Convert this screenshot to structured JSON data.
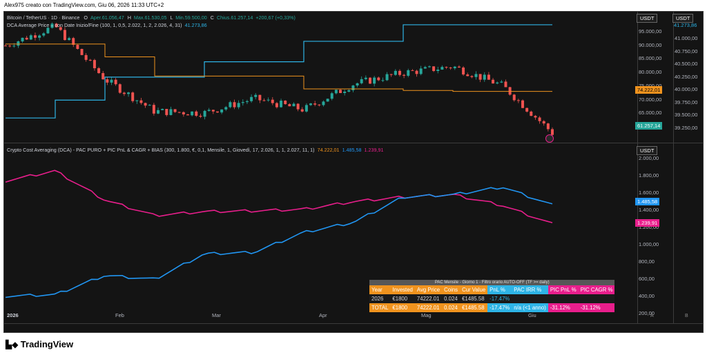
{
  "caption": "Alex975 creato con TradingView.com, Giu 06, 2026 11:33 UTC+2",
  "brand": "TradingView",
  "colors": {
    "bg": "#141414",
    "up": "#26a69a",
    "down": "#ef5350",
    "orange": "#f0931e",
    "cyan": "#2eb4e6",
    "blue": "#2196f3",
    "pink": "#e91e8c"
  },
  "top_legend": {
    "line1": {
      "symbol": "Bitcoin / TetherUS · 1D · Binance",
      "o": "O",
      "o_val": "Aper.61.056,47",
      "h": "H",
      "h_val": "Max.61.530,05",
      "l": "L",
      "l_val": "Min.59.500,00",
      "c": "C",
      "c_val": "Chius.61.257,14",
      "chg": "+200,67 (+0,33%)"
    },
    "line2": {
      "label": "DCA Average Price – con Date Inizio/Fine (100, 1, 0,5, 2.022, 1, 2, 2.026, 4, 31)",
      "value": "41.273,86"
    }
  },
  "bottom_legend": {
    "label": "Crypto Cost Averaging (DCA) - PAC PURO + PIC PnL & CAGR + BIAS (300, 1.800, €, 0,1, Mensile, 1, Giovedì, 17, 2.026, 1, 1, 2.027, 11, 1)",
    "v1": "74.222,01",
    "v2": "1.485,58",
    "v3": "1.239,91"
  },
  "unit": "USDT",
  "left_axis_ticks": [
    "95.000,00",
    "90.000,00",
    "85.000,00",
    "80.000,00",
    "75.000,00",
    "70.000,00",
    "65.000,00",
    "60.000,00"
  ],
  "right_axis_ticks": [
    "41.000,00",
    "40.750,00",
    "40.500,00",
    "40.250,00",
    "40.000,00",
    "39.750,00",
    "39.500,00",
    "39.250,00"
  ],
  "right_axis_top": "41.273,86",
  "price_badges": {
    "avg": "74.222,01",
    "last": "61.257,14"
  },
  "bottom_axis_ticks": [
    "2.000,00",
    "1.800,00",
    "1.600,00",
    "1.400,00",
    "1.200,00",
    "1.000,00",
    "800,00",
    "600,00",
    "400,00",
    "200,00"
  ],
  "bottom_badges": {
    "blue": "1.485,58",
    "pink": "1.239,91"
  },
  "x_ticks": [
    "2026",
    "Feb",
    "Mar",
    "Apr",
    "Mag",
    "Giu"
  ],
  "pane_letters": [
    "A",
    "B"
  ],
  "table": {
    "title": "PAC Mensile - Giorno 1 - Filtro orario AUTO-OFF (TF >= daily)",
    "headers": [
      "Year",
      "Invested",
      "Avg Price",
      "Coins",
      "Cur Value",
      "PnL %",
      "PAC IRR %",
      "PIC PnL %",
      "PIC CAGR %"
    ],
    "row1": [
      "2026",
      "€1800",
      "74222.01",
      "0.024",
      "€1485.58",
      "-17.47%",
      "",
      "",
      ""
    ],
    "row2": [
      "TOTAL",
      "€1800",
      "74222.01",
      "0.024",
      "€1485.58",
      "-17.47%",
      "n/a (<1 anno)",
      "-31.12%",
      "-31.12%"
    ]
  },
  "chart_data": [
    {
      "type": "line",
      "title": "Bitcoin / TetherUS · 1D · Binance",
      "x": [
        "2026-01-01",
        "2026-01-15",
        "2026-02-01",
        "2026-02-15",
        "2026-03-01",
        "2026-03-15",
        "2026-04-01",
        "2026-04-15",
        "2026-05-01",
        "2026-05-15",
        "2026-06-01",
        "2026-06-06"
      ],
      "series": [
        {
          "name": "BTC close",
          "values": [
            88500,
            94500,
            78000,
            68000,
            67500,
            72000,
            68500,
            76500,
            80000,
            82000,
            76000,
            61257
          ]
        },
        {
          "name": "DCA Average Price",
          "values": [
            39450,
            39800,
            40250,
            40250,
            40550,
            40550,
            40950,
            40950,
            41274,
            41274,
            41274,
            41274
          ]
        }
      ],
      "ylim": [
        58000,
        98000
      ]
    },
    {
      "type": "line",
      "title": "Crypto Cost Averaging (DCA)",
      "x": [
        "2026-01-01",
        "2026-01-15",
        "2026-02-01",
        "2026-02-15",
        "2026-03-01",
        "2026-03-15",
        "2026-04-01",
        "2026-04-15",
        "2026-05-01",
        "2026-05-15",
        "2026-06-01",
        "2026-06-06"
      ],
      "series": [
        {
          "values": [
            300,
            320,
            570,
            520,
            850,
            870,
            1130,
            1260,
            1590,
            1620,
            1720,
            1485.58
          ]
        },
        {
          "values": [
            1800,
            1930,
            1550,
            1350,
            1400,
            1410,
            1430,
            1530,
            1590,
            1620,
            1480,
            1239.91
          ]
        }
      ],
      "ylim": [
        100,
        2100
      ]
    }
  ]
}
